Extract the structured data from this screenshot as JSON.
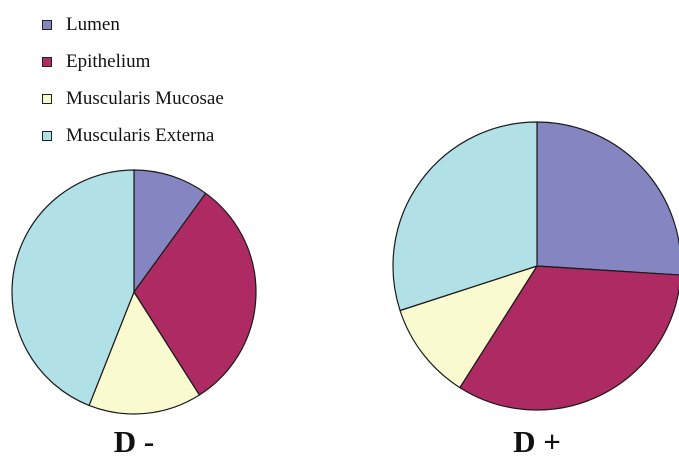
{
  "chart_data": [
    {
      "type": "pie",
      "label": "D -",
      "categories": [
        "Lumen",
        "Epithelium",
        "Muscularis Mucosae",
        "Muscularis Externa"
      ],
      "values": [
        10,
        31,
        15,
        44
      ],
      "colors": [
        "#8585c2",
        "#ad2a63",
        "#fafad0",
        "#b1e0e6"
      ],
      "start_angle_deg": 0,
      "direction": "clockwise"
    },
    {
      "type": "pie",
      "label": "D +",
      "categories": [
        "Lumen",
        "Epithelium",
        "Muscularis Mucosae",
        "Muscularis Externa"
      ],
      "values": [
        26,
        33,
        11,
        30
      ],
      "colors": [
        "#8585c2",
        "#ad2a63",
        "#fafad0",
        "#b1e0e6"
      ],
      "start_angle_deg": 0,
      "direction": "clockwise"
    }
  ],
  "legend": {
    "position": "top-left",
    "items": [
      {
        "label": "Lumen",
        "color": "#8585c2"
      },
      {
        "label": "Epithelium",
        "color": "#ad2a63"
      },
      {
        "label": "Muscularis Mucosae",
        "color": "#fafad0"
      },
      {
        "label": "Muscularis Externa",
        "color": "#b1e0e6"
      }
    ]
  }
}
